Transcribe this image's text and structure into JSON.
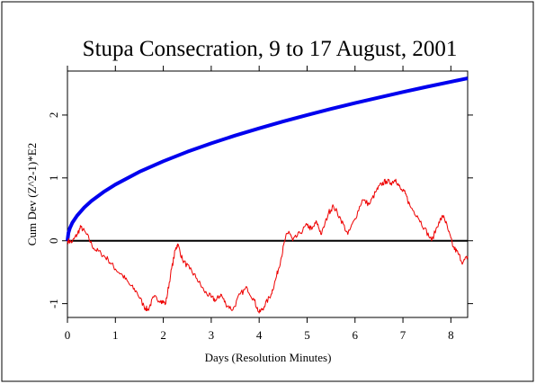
{
  "chart_data": {
    "type": "line",
    "title": "Stupa Consecration, 9 to 17 August, 2001",
    "xlabel": "Days (Resolution Minutes)",
    "ylabel": "Cum Dev (Z^2-1)*E2",
    "xlim": [
      0,
      8.35
    ],
    "ylim": [
      -1.22,
      2.7
    ],
    "xticks": [
      "0",
      "1",
      "2",
      "3",
      "4",
      "5",
      "6",
      "7",
      "8"
    ],
    "yticks": [
      "-1",
      "0",
      "1",
      "2"
    ],
    "grid": false,
    "series": [
      {
        "color": "#0000ee",
        "x": [
          0,
          0.02,
          0.05,
          0.1,
          0.2,
          0.35,
          0.5,
          0.75,
          1.0,
          1.5,
          2.0,
          2.5,
          3.0,
          3.5,
          4.0,
          4.5,
          5.0,
          5.5,
          6.0,
          6.5,
          7.0,
          7.5,
          8.0,
          8.35
        ],
        "values": [
          0,
          0.126,
          0.2,
          0.283,
          0.4,
          0.529,
          0.632,
          0.775,
          0.895,
          1.096,
          1.265,
          1.415,
          1.55,
          1.674,
          1.789,
          1.898,
          2.001,
          2.098,
          2.191,
          2.28,
          2.366,
          2.449,
          2.53,
          2.584
        ]
      },
      {
        "color": "#ee0000",
        "x": [
          0,
          0.1,
          0.2,
          0.28,
          0.4,
          0.55,
          0.7,
          0.85,
          1.0,
          1.15,
          1.3,
          1.45,
          1.6,
          1.68,
          1.8,
          1.95,
          2.05,
          2.15,
          2.25,
          2.3,
          2.4,
          2.55,
          2.7,
          2.85,
          3.0,
          3.1,
          3.2,
          3.3,
          3.45,
          3.6,
          3.75,
          3.9,
          4.0,
          4.1,
          4.25,
          4.35,
          4.45,
          4.55,
          4.62,
          4.7,
          4.85,
          5.0,
          5.1,
          5.2,
          5.3,
          5.45,
          5.55,
          5.7,
          5.85,
          6.0,
          6.15,
          6.3,
          6.45,
          6.55,
          6.65,
          6.75,
          6.85,
          6.95,
          7.05,
          7.15,
          7.3,
          7.45,
          7.6,
          7.75,
          7.85,
          7.95,
          8.05,
          8.15,
          8.25,
          8.35
        ],
        "values": [
          0,
          -0.02,
          0.1,
          0.22,
          0.1,
          -0.12,
          -0.2,
          -0.3,
          -0.45,
          -0.55,
          -0.7,
          -0.82,
          -1.05,
          -1.1,
          -0.9,
          -0.95,
          -1.0,
          -0.55,
          -0.15,
          -0.05,
          -0.3,
          -0.45,
          -0.6,
          -0.8,
          -0.9,
          -0.95,
          -0.85,
          -1.0,
          -1.1,
          -0.85,
          -0.75,
          -0.95,
          -1.15,
          -1.05,
          -0.85,
          -0.6,
          -0.3,
          0.05,
          0.15,
          0.0,
          0.12,
          0.25,
          0.18,
          0.3,
          0.1,
          0.45,
          0.55,
          0.35,
          0.1,
          0.35,
          0.65,
          0.58,
          0.8,
          0.9,
          0.95,
          0.92,
          0.98,
          0.82,
          0.75,
          0.55,
          0.4,
          0.2,
          0.0,
          0.3,
          0.4,
          0.15,
          -0.1,
          -0.2,
          -0.35,
          -0.25
        ]
      }
    ],
    "reference_line": {
      "y": 0,
      "color": "#000000"
    }
  }
}
